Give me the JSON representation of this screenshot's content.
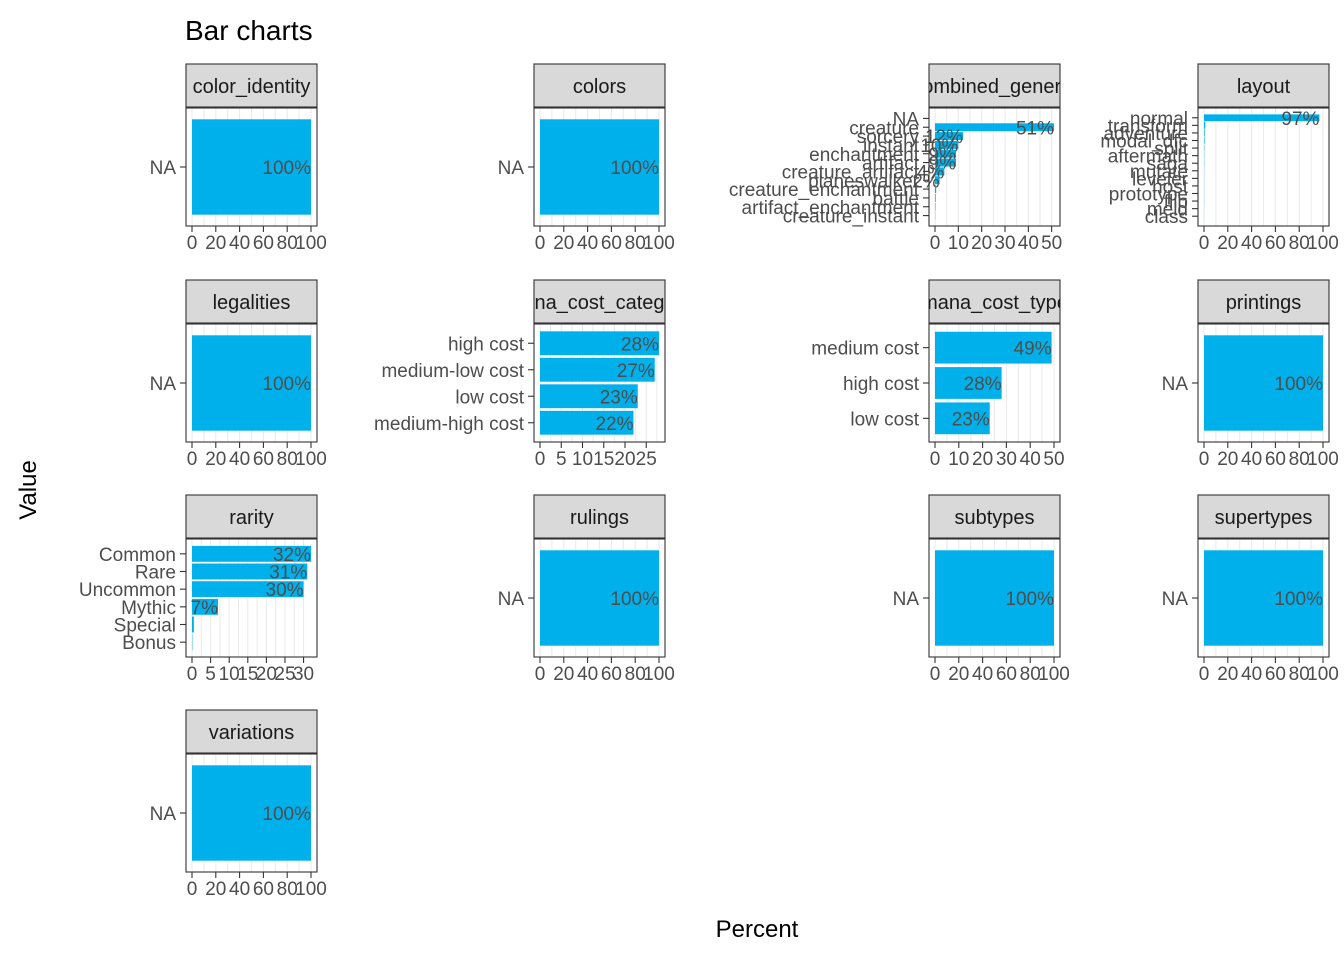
{
  "chart_data": {
    "type": "bar",
    "title": "Bar charts",
    "xlabel": "Percent",
    "ylabel": "Value",
    "grid": true,
    "facets": [
      {
        "name": "color_identity",
        "categories": [
          "NA"
        ],
        "values": [
          100
        ],
        "labels": [
          "100%"
        ],
        "xticks": [
          "0",
          "20",
          "40",
          "60",
          "80",
          "100"
        ],
        "xlim": [
          0,
          100
        ]
      },
      {
        "name": "colors",
        "categories": [
          "NA"
        ],
        "values": [
          100
        ],
        "labels": [
          "100%"
        ],
        "xticks": [
          "0",
          "20",
          "40",
          "60",
          "80",
          "100"
        ],
        "xlim": [
          0,
          100
        ]
      },
      {
        "name": "combined_general",
        "categories": [
          "NA",
          "creature",
          "sorcery",
          "instant",
          "enchantment",
          "artifact",
          "creature_artifact",
          "planeswalker",
          "creature_enchantment",
          "battle",
          "artifact_enchantment",
          "creature_instant"
        ],
        "values": [
          0,
          51,
          12,
          10,
          9,
          9,
          4,
          2,
          0.5,
          0.3,
          0.2,
          0.1
        ],
        "labels": [
          "",
          "51%",
          "12%",
          "10%",
          "9%",
          "9%",
          "4%",
          "2%",
          "",
          "",
          "",
          ""
        ],
        "xticks": [
          "0",
          "10",
          "20",
          "30",
          "40",
          "50"
        ],
        "xlim": [
          0,
          51
        ]
      },
      {
        "name": "layout",
        "categories": [
          "normal",
          "transform",
          "adventure",
          "modal_dfc",
          "split",
          "aftermath",
          "saga",
          "mutate",
          "leveler",
          "host",
          "prototype",
          "flip",
          "meld",
          "class"
        ],
        "values": [
          97,
          1,
          0.6,
          0.5,
          0.3,
          0.2,
          0.2,
          0.1,
          0.1,
          0.1,
          0.1,
          0.1,
          0.05,
          0.05
        ],
        "labels": [
          "97%",
          "",
          "",
          "",
          "",
          "",
          "",
          "",
          "",
          "",
          "",
          "",
          "",
          ""
        ],
        "xticks": [
          "0",
          "20",
          "40",
          "60",
          "80",
          "100"
        ],
        "xlim": [
          0,
          100
        ]
      },
      {
        "name": "legalities",
        "categories": [
          "NA"
        ],
        "values": [
          100
        ],
        "labels": [
          "100%"
        ],
        "xticks": [
          "0",
          "20",
          "40",
          "60",
          "80",
          "100"
        ],
        "xlim": [
          0,
          100
        ]
      },
      {
        "name": "mana_cost_category",
        "categories": [
          "high cost",
          "medium-low cost",
          "low cost",
          "medium-high cost"
        ],
        "values": [
          28,
          27,
          23,
          22
        ],
        "labels": [
          "28%",
          "27%",
          "23%",
          "22%"
        ],
        "xticks": [
          "0",
          "5",
          "10",
          "15",
          "20",
          "25"
        ],
        "xlim": [
          0,
          28
        ]
      },
      {
        "name": "mana_cost_type",
        "categories": [
          "medium cost",
          "high cost",
          "low cost"
        ],
        "values": [
          49,
          28,
          23
        ],
        "labels": [
          "49%",
          "28%",
          "23%"
        ],
        "xticks": [
          "0",
          "10",
          "20",
          "30",
          "40",
          "50"
        ],
        "xlim": [
          0,
          50
        ]
      },
      {
        "name": "printings",
        "categories": [
          "NA"
        ],
        "values": [
          100
        ],
        "labels": [
          "100%"
        ],
        "xticks": [
          "0",
          "20",
          "40",
          "60",
          "80",
          "100"
        ],
        "xlim": [
          0,
          100
        ]
      },
      {
        "name": "rarity",
        "categories": [
          "Common",
          "Rare",
          "Uncommon",
          "Mythic",
          "Special",
          "Bonus"
        ],
        "values": [
          32,
          31,
          30,
          7,
          0.5,
          0.1
        ],
        "labels": [
          "32%",
          "31%",
          "30%",
          "7%",
          "",
          ""
        ],
        "xticks": [
          "0",
          "5",
          "10",
          "15",
          "20",
          "25",
          "30"
        ],
        "xlim": [
          0,
          32
        ]
      },
      {
        "name": "rulings",
        "categories": [
          "NA"
        ],
        "values": [
          100
        ],
        "labels": [
          "100%"
        ],
        "xticks": [
          "0",
          "20",
          "40",
          "60",
          "80",
          "100"
        ],
        "xlim": [
          0,
          100
        ]
      },
      {
        "name": "subtypes",
        "categories": [
          "NA"
        ],
        "values": [
          100
        ],
        "labels": [
          "100%"
        ],
        "xticks": [
          "0",
          "20",
          "40",
          "60",
          "80",
          "100"
        ],
        "xlim": [
          0,
          100
        ]
      },
      {
        "name": "supertypes",
        "categories": [
          "NA"
        ],
        "values": [
          100
        ],
        "labels": [
          "100%"
        ],
        "xticks": [
          "0",
          "20",
          "40",
          "60",
          "80",
          "100"
        ],
        "xlim": [
          0,
          100
        ]
      },
      {
        "name": "variations",
        "categories": [
          "NA"
        ],
        "values": [
          100
        ],
        "labels": [
          "100%"
        ],
        "xticks": [
          "0",
          "20",
          "40",
          "60",
          "80",
          "100"
        ],
        "xlim": [
          0,
          100
        ]
      }
    ]
  },
  "colors": {
    "bar": "#00b0eb",
    "strip": "#d9d9d9",
    "grid": "#ebebeb",
    "text": "#4d4d4d"
  }
}
